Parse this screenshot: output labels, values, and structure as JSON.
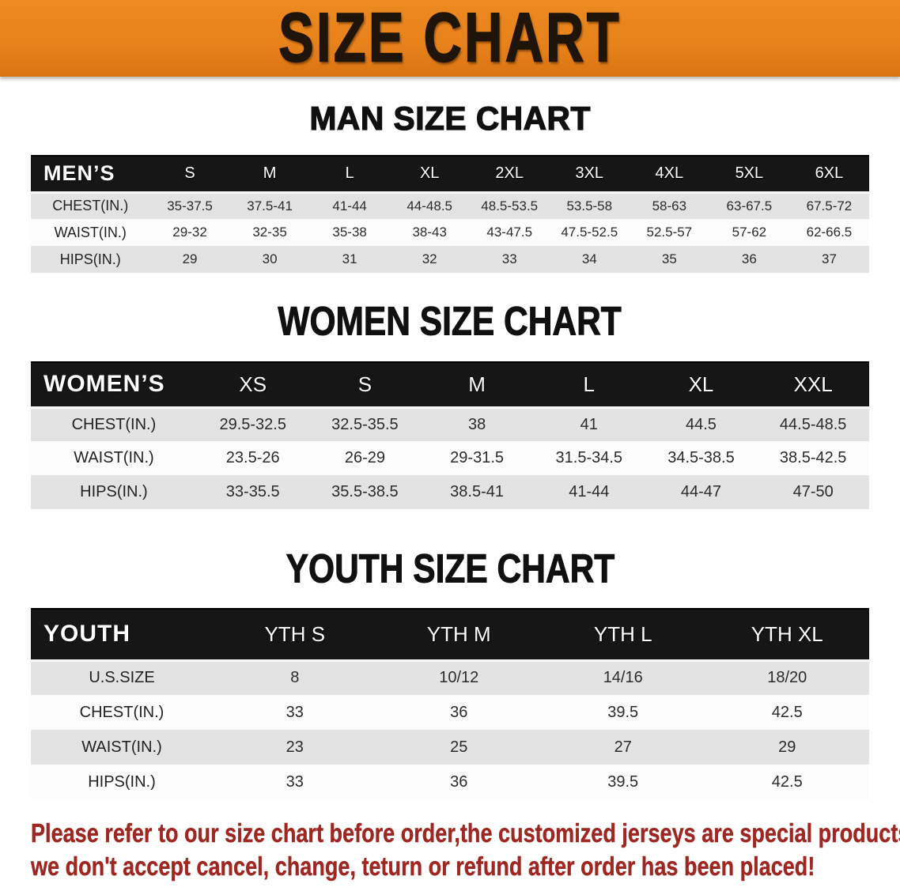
{
  "banner": {
    "title": "SIZE CHART"
  },
  "colors": {
    "banner_bg": "#E8821B",
    "banner_text": "#1E1409",
    "table_header_bg": "#161616",
    "table_header_text": "#FFFFFF",
    "row_stripe": "#E3E3E3",
    "row_plain": "#FCFCFC",
    "footer_text": "#9E2722"
  },
  "sections": [
    {
      "id": "men",
      "heading": "MAN SIZE CHART",
      "label": "MEN’S",
      "columns": [
        "S",
        "M",
        "L",
        "XL",
        "2XL",
        "3XL",
        "4XL",
        "5XL",
        "6XL"
      ],
      "rows": [
        {
          "label": "CHEST(IN.)",
          "values": [
            "35-37.5",
            "37.5-41",
            "41-44",
            "44-48.5",
            "48.5-53.5",
            "53.5-58",
            "58-63",
            "63-67.5",
            "67.5-72"
          ]
        },
        {
          "label": "WAIST(IN.)",
          "values": [
            "29-32",
            "32-35",
            "35-38",
            "38-43",
            "43-47.5",
            "47.5-52.5",
            "52.5-57",
            "57-62",
            "62-66.5"
          ]
        },
        {
          "label": "HIPS(IN.)",
          "values": [
            "29",
            "30",
            "31",
            "32",
            "33",
            "34",
            "35",
            "36",
            "37"
          ]
        }
      ]
    },
    {
      "id": "women",
      "heading": "WOMEN SIZE CHART",
      "label": "WOMEN’S",
      "columns": [
        "XS",
        "S",
        "M",
        "L",
        "XL",
        "XXL"
      ],
      "rows": [
        {
          "label": "CHEST(IN.)",
          "values": [
            "29.5-32.5",
            "32.5-35.5",
            "38",
            "41",
            "44.5",
            "44.5-48.5"
          ]
        },
        {
          "label": "WAIST(IN.)",
          "values": [
            "23.5-26",
            "26-29",
            "29-31.5",
            "31.5-34.5",
            "34.5-38.5",
            "38.5-42.5"
          ]
        },
        {
          "label": "HIPS(IN.)",
          "values": [
            "33-35.5",
            "35.5-38.5",
            "38.5-41",
            "41-44",
            "44-47",
            "47-50"
          ]
        }
      ]
    },
    {
      "id": "youth",
      "heading": "YOUTH SIZE CHART",
      "label": "YOUTH",
      "columns": [
        "YTH S",
        "YTH M",
        "YTH L",
        "YTH XL"
      ],
      "rows": [
        {
          "label": "U.S.SIZE",
          "values": [
            "8",
            "10/12",
            "14/16",
            "18/20"
          ]
        },
        {
          "label": "CHEST(IN.)",
          "values": [
            "33",
            "36",
            "39.5",
            "42.5"
          ]
        },
        {
          "label": "WAIST(IN.)",
          "values": [
            "23",
            "25",
            "27",
            "29"
          ]
        },
        {
          "label": "HIPS(IN.)",
          "values": [
            "33",
            "36",
            "39.5",
            "42.5"
          ]
        }
      ]
    }
  ],
  "footer": {
    "line1": "Please refer to our size chart before order,the customized jerseys are special products,",
    "line2": "we don't accept cancel, change, teturn or refund after order has been placed!"
  }
}
